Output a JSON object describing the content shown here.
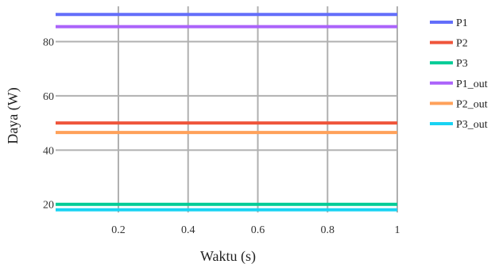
{
  "chart_data": {
    "type": "line",
    "xlabel": "Waktu (s)",
    "ylabel": "Daya (W)",
    "xlim": [
      0.02,
      1
    ],
    "ylim": [
      17,
      93
    ],
    "x_ticks": [
      0.2,
      0.4,
      0.6,
      0.8,
      1
    ],
    "x_tick_labels": [
      "0.2",
      "0.4",
      "0.6",
      "0.8",
      "1"
    ],
    "y_ticks": [
      20,
      40,
      60,
      80
    ],
    "y_tick_labels": [
      "20",
      "40",
      "60",
      "80"
    ],
    "grid": true,
    "legend_position": "right",
    "x": [
      0.02,
      1
    ],
    "series": [
      {
        "name": "P1",
        "values": [
          90,
          90
        ],
        "color": "#636efa"
      },
      {
        "name": "P2",
        "values": [
          50,
          50
        ],
        "color": "#ef553b"
      },
      {
        "name": "P3",
        "values": [
          20,
          20
        ],
        "color": "#00cc96"
      },
      {
        "name": "P1_out",
        "values": [
          85.5,
          85.5
        ],
        "color": "#ab63fa"
      },
      {
        "name": "P2_out",
        "values": [
          46.5,
          46.5
        ],
        "color": "#ffa15a"
      },
      {
        "name": "P3_out",
        "values": [
          18,
          18
        ],
        "color": "#19d3f3"
      }
    ]
  }
}
